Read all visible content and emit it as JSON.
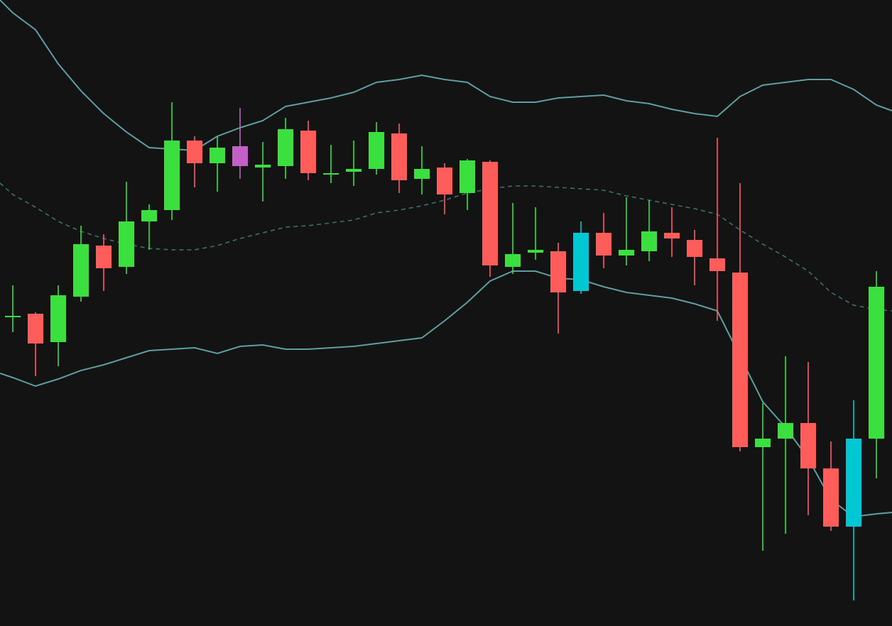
{
  "colors": {
    "background": "#131313",
    "bull": "#39e03e",
    "bear": "#ff5c5c",
    "cyan": "#00c8d2",
    "violet": "#c45fc8",
    "band": "#5f9ea0",
    "mid": "#3f6f6a"
  },
  "chart_data": {
    "type": "candlestick",
    "xlabel": "",
    "ylabel": "",
    "grid": false,
    "legend": "none",
    "ylim": [
      0,
      882
    ],
    "candles": [
      {
        "x": 18,
        "o": 437,
        "c": 437,
        "h": 480,
        "l": 414,
        "color": "bull"
      },
      {
        "x": 50,
        "o": 398,
        "c": 440,
        "h": 442,
        "l": 352,
        "color": "bear"
      },
      {
        "x": 82,
        "o": 400,
        "c": 466,
        "h": 480,
        "l": 366,
        "color": "bull"
      },
      {
        "x": 114,
        "o": 464,
        "c": 538,
        "h": 564,
        "l": 457,
        "color": "bull"
      },
      {
        "x": 146,
        "o": 536,
        "c": 504,
        "h": 552,
        "l": 472,
        "color": "bear"
      },
      {
        "x": 178,
        "o": 506,
        "c": 570,
        "h": 626,
        "l": 496,
        "color": "bull"
      },
      {
        "x": 210,
        "o": 570,
        "c": 586,
        "h": 594,
        "l": 530,
        "color": "bull"
      },
      {
        "x": 242,
        "o": 586,
        "c": 684,
        "h": 738,
        "l": 572,
        "color": "bull"
      },
      {
        "x": 274,
        "o": 684,
        "c": 652,
        "h": 690,
        "l": 618,
        "color": "bear"
      },
      {
        "x": 306,
        "o": 652,
        "c": 674,
        "h": 690,
        "l": 612,
        "color": "bull"
      },
      {
        "x": 338,
        "o": 676,
        "c": 648,
        "h": 730,
        "l": 630,
        "color": "violet"
      },
      {
        "x": 370,
        "o": 646,
        "c": 650,
        "h": 682,
        "l": 598,
        "color": "bull"
      },
      {
        "x": 402,
        "o": 648,
        "c": 700,
        "h": 716,
        "l": 630,
        "color": "bull"
      },
      {
        "x": 434,
        "o": 698,
        "c": 638,
        "h": 712,
        "l": 628,
        "color": "bear"
      },
      {
        "x": 466,
        "o": 638,
        "c": 638,
        "h": 678,
        "l": 624,
        "color": "bull"
      },
      {
        "x": 498,
        "o": 640,
        "c": 644,
        "h": 684,
        "l": 620,
        "color": "bull"
      },
      {
        "x": 530,
        "o": 644,
        "c": 696,
        "h": 710,
        "l": 636,
        "color": "bull"
      },
      {
        "x": 562,
        "o": 694,
        "c": 628,
        "h": 708,
        "l": 610,
        "color": "bear"
      },
      {
        "x": 594,
        "o": 630,
        "c": 644,
        "h": 676,
        "l": 608,
        "color": "bull"
      },
      {
        "x": 626,
        "o": 646,
        "c": 608,
        "h": 652,
        "l": 580,
        "color": "bear"
      },
      {
        "x": 658,
        "o": 610,
        "c": 656,
        "h": 658,
        "l": 586,
        "color": "bull"
      },
      {
        "x": 690,
        "o": 654,
        "c": 508,
        "h": 656,
        "l": 492,
        "color": "bear"
      },
      {
        "x": 722,
        "o": 506,
        "c": 524,
        "h": 596,
        "l": 496,
        "color": "bull"
      },
      {
        "x": 754,
        "o": 526,
        "c": 530,
        "h": 590,
        "l": 516,
        "color": "bull"
      },
      {
        "x": 786,
        "o": 528,
        "c": 470,
        "h": 540,
        "l": 412,
        "color": "bear"
      },
      {
        "x": 818,
        "o": 472,
        "c": 554,
        "h": 570,
        "l": 468,
        "color": "cyan"
      },
      {
        "x": 850,
        "o": 554,
        "c": 522,
        "h": 582,
        "l": 504,
        "color": "bear"
      },
      {
        "x": 882,
        "o": 522,
        "c": 530,
        "h": 604,
        "l": 508,
        "color": "bull"
      },
      {
        "x": 914,
        "o": 528,
        "c": 556,
        "h": 600,
        "l": 514,
        "color": "bull"
      },
      {
        "x": 946,
        "o": 554,
        "c": 546,
        "h": 590,
        "l": 520,
        "color": "bear"
      },
      {
        "x": 978,
        "o": 544,
        "c": 520,
        "h": 558,
        "l": 480,
        "color": "bear"
      },
      {
        "x": 1010,
        "o": 518,
        "c": 500,
        "h": 688,
        "l": 430,
        "color": "bear"
      },
      {
        "x": 1042,
        "o": 498,
        "c": 252,
        "h": 624,
        "l": 246,
        "color": "bear"
      },
      {
        "x": 1074,
        "o": 252,
        "c": 264,
        "h": 314,
        "l": 106,
        "color": "bull"
      },
      {
        "x": 1106,
        "o": 264,
        "c": 286,
        "h": 380,
        "l": 130,
        "color": "bull"
      },
      {
        "x": 1138,
        "o": 286,
        "c": 222,
        "h": 372,
        "l": 156,
        "color": "bear"
      },
      {
        "x": 1170,
        "o": 222,
        "c": 140,
        "h": 260,
        "l": 134,
        "color": "bear"
      },
      {
        "x": 1202,
        "o": 140,
        "c": 264,
        "h": 318,
        "l": 36,
        "color": "cyan"
      },
      {
        "x": 1234,
        "o": 264,
        "c": 478,
        "h": 500,
        "l": 208,
        "color": "bull"
      }
    ],
    "bands": {
      "upper": [
        [
          0,
          882
        ],
        [
          18,
          864
        ],
        [
          50,
          840
        ],
        [
          82,
          792
        ],
        [
          114,
          754
        ],
        [
          146,
          722
        ],
        [
          178,
          696
        ],
        [
          210,
          674
        ],
        [
          242,
          672
        ],
        [
          274,
          670
        ],
        [
          306,
          690
        ],
        [
          338,
          702
        ],
        [
          370,
          712
        ],
        [
          402,
          732
        ],
        [
          434,
          738
        ],
        [
          466,
          744
        ],
        [
          498,
          752
        ],
        [
          530,
          766
        ],
        [
          562,
          770
        ],
        [
          594,
          776
        ],
        [
          626,
          770
        ],
        [
          658,
          766
        ],
        [
          690,
          746
        ],
        [
          722,
          738
        ],
        [
          754,
          738
        ],
        [
          786,
          744
        ],
        [
          818,
          746
        ],
        [
          850,
          748
        ],
        [
          882,
          740
        ],
        [
          914,
          736
        ],
        [
          946,
          728
        ],
        [
          978,
          722
        ],
        [
          1010,
          718
        ],
        [
          1042,
          746
        ],
        [
          1074,
          762
        ],
        [
          1106,
          766
        ],
        [
          1138,
          770
        ],
        [
          1170,
          770
        ],
        [
          1202,
          756
        ],
        [
          1234,
          734
        ],
        [
          1256,
          726
        ]
      ],
      "middle": [
        [
          0,
          624
        ],
        [
          18,
          608
        ],
        [
          50,
          590
        ],
        [
          82,
          570
        ],
        [
          114,
          556
        ],
        [
          146,
          546
        ],
        [
          178,
          538
        ],
        [
          210,
          532
        ],
        [
          242,
          530
        ],
        [
          274,
          530
        ],
        [
          306,
          536
        ],
        [
          338,
          546
        ],
        [
          370,
          554
        ],
        [
          402,
          562
        ],
        [
          434,
          564
        ],
        [
          466,
          568
        ],
        [
          498,
          572
        ],
        [
          530,
          582
        ],
        [
          562,
          586
        ],
        [
          594,
          592
        ],
        [
          626,
          600
        ],
        [
          658,
          610
        ],
        [
          690,
          616
        ],
        [
          722,
          620
        ],
        [
          754,
          620
        ],
        [
          786,
          618
        ],
        [
          818,
          616
        ],
        [
          850,
          614
        ],
        [
          882,
          606
        ],
        [
          914,
          600
        ],
        [
          946,
          594
        ],
        [
          978,
          588
        ],
        [
          1010,
          580
        ],
        [
          1042,
          558
        ],
        [
          1074,
          538
        ],
        [
          1106,
          520
        ],
        [
          1138,
          500
        ],
        [
          1170,
          470
        ],
        [
          1202,
          452
        ],
        [
          1234,
          446
        ],
        [
          1256,
          444
        ]
      ],
      "lower": [
        [
          0,
          356
        ],
        [
          18,
          350
        ],
        [
          50,
          338
        ],
        [
          82,
          348
        ],
        [
          114,
          360
        ],
        [
          146,
          368
        ],
        [
          178,
          378
        ],
        [
          210,
          388
        ],
        [
          242,
          390
        ],
        [
          274,
          392
        ],
        [
          306,
          384
        ],
        [
          338,
          394
        ],
        [
          370,
          396
        ],
        [
          402,
          390
        ],
        [
          434,
          390
        ],
        [
          466,
          392
        ],
        [
          498,
          394
        ],
        [
          530,
          398
        ],
        [
          562,
          402
        ],
        [
          594,
          406
        ],
        [
          626,
          430
        ],
        [
          658,
          456
        ],
        [
          690,
          486
        ],
        [
          722,
          500
        ],
        [
          754,
          500
        ],
        [
          786,
          490
        ],
        [
          818,
          488
        ],
        [
          850,
          478
        ],
        [
          882,
          470
        ],
        [
          914,
          466
        ],
        [
          946,
          462
        ],
        [
          978,
          454
        ],
        [
          1010,
          444
        ],
        [
          1042,
          380
        ],
        [
          1074,
          316
        ],
        [
          1106,
          280
        ],
        [
          1138,
          236
        ],
        [
          1170,
          178
        ],
        [
          1202,
          154
        ],
        [
          1234,
          158
        ],
        [
          1256,
          160
        ]
      ]
    }
  }
}
